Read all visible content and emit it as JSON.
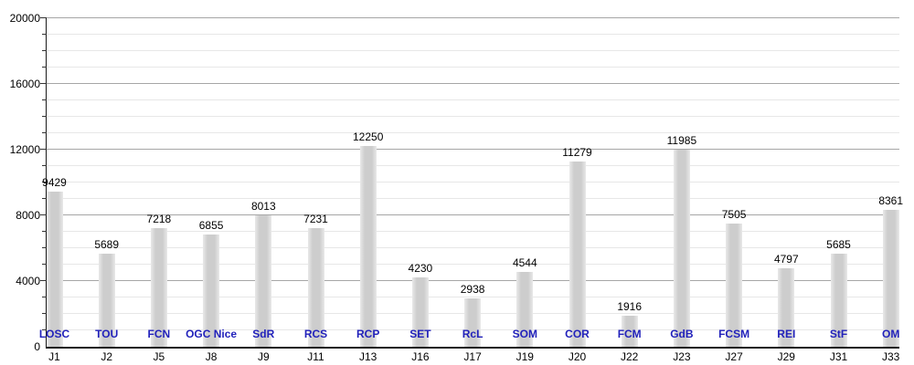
{
  "chart_data": {
    "type": "bar",
    "title": "",
    "categories": [
      "J1",
      "J2",
      "J5",
      "J8",
      "J9",
      "J11",
      "J13",
      "J16",
      "J17",
      "J19",
      "J20",
      "J22",
      "J23",
      "J27",
      "J29",
      "J31",
      "J33"
    ],
    "bar_labels": [
      "LOSC",
      "TOU",
      "FCN",
      "OGC Nice",
      "SdR",
      "RCS",
      "RCP",
      "SET",
      "RcL",
      "SOM",
      "COR",
      "FCM",
      "GdB",
      "FCSM",
      "REI",
      "StF",
      "OM"
    ],
    "values": [
      9429,
      5689,
      7218,
      6855,
      8013,
      7231,
      12250,
      4230,
      2938,
      4544,
      11279,
      1916,
      11985,
      7505,
      4797,
      5685,
      8361
    ],
    "xlabel": "",
    "ylabel": "",
    "ylim": [
      0,
      20000
    ],
    "ytick_major": 4000,
    "ytick_minor": 1000,
    "ytick_labels": [
      "0",
      "4000",
      "8000",
      "12000",
      "16000",
      "20000"
    ],
    "grid": "on",
    "legend": "none",
    "colors": {
      "bar_fill": "#cdcdcd",
      "bar_edge": "#e9e9e9",
      "club_label": "#2222bb",
      "value_label": "#000000",
      "axis": "#1a1a1a",
      "grid_major": "#a6a6a6",
      "grid_minor": "#e7e7e7",
      "background": "#ffffff"
    }
  }
}
